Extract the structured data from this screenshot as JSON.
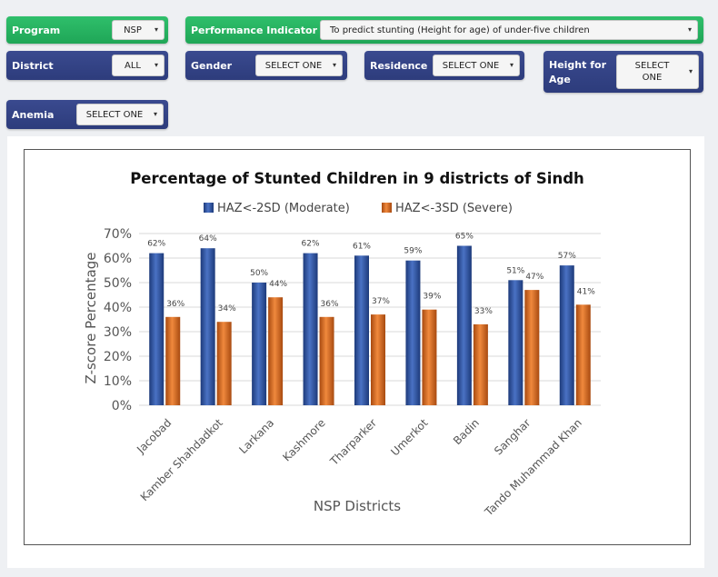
{
  "filters": {
    "program": {
      "label": "Program",
      "value": "NSP"
    },
    "performance_indicator": {
      "label": "Performance Indicator",
      "value": "To predict stunting (Height for age) of under-five children"
    },
    "district": {
      "label": "District",
      "value": "ALL"
    },
    "gender": {
      "label": "Gender",
      "value": "SELECT ONE"
    },
    "residence": {
      "label": "Residence",
      "value": "SELECT ONE"
    },
    "height_for_age": {
      "label": "Height for Age",
      "value": "SELECT ONE"
    },
    "anemia": {
      "label": "Anemia",
      "value": "SELECT ONE"
    }
  },
  "colors": {
    "green_header": "#22b05f",
    "navy_header": "#2f3f80",
    "moderate": "#2d4f9e",
    "severe": "#d9651c"
  },
  "chart_data": {
    "type": "bar",
    "title": "Percentage of Stunted Children in 9 districts of Sindh",
    "xlabel": "NSP Districts",
    "ylabel": "Z-score Percentage",
    "ylim": [
      0,
      70
    ],
    "yticks": [
      "0%",
      "10%",
      "20%",
      "30%",
      "40%",
      "50%",
      "60%",
      "70%"
    ],
    "grid": true,
    "legend_position": "top",
    "categories": [
      "Jacobad",
      "Kamber Shahdadkot",
      "Larkana",
      "Kashmore",
      "Tharparker",
      "Umerkot",
      "Badin",
      "Sanghar",
      "Tando Muhammad Khan"
    ],
    "series": [
      {
        "name": "HAZ<-2SD (Moderate)",
        "values": [
          62,
          64,
          50,
          62,
          61,
          59,
          65,
          51,
          57
        ],
        "labels": [
          "62%",
          "64%",
          "50%",
          "62%",
          "61%",
          "59%",
          "65%",
          "51%",
          "57%"
        ]
      },
      {
        "name": "HAZ<-3SD (Severe)",
        "values": [
          36,
          34,
          44,
          36,
          37,
          39,
          33,
          47,
          41
        ],
        "labels": [
          "36%",
          "34%",
          "44%",
          "36%",
          "37%",
          "39%",
          "33%",
          "47%",
          "41%"
        ]
      }
    ]
  }
}
